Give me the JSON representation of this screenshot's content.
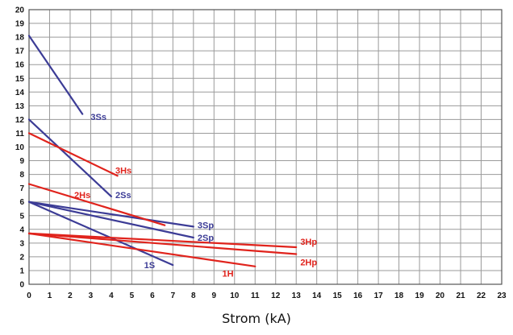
{
  "chart_data": {
    "type": "line",
    "title": "",
    "xlabel": "Strom (kA)",
    "ylabel": "",
    "xlim": [
      0,
      23
    ],
    "ylim": [
      0,
      20
    ],
    "x_ticks": [
      0,
      1,
      2,
      3,
      4,
      5,
      6,
      7,
      8,
      9,
      10,
      11,
      12,
      13,
      14,
      15,
      16,
      17,
      18,
      19,
      20,
      21,
      22,
      23
    ],
    "y_ticks": [
      0,
      1,
      2,
      3,
      4,
      5,
      6,
      7,
      8,
      9,
      10,
      11,
      12,
      13,
      14,
      15,
      16,
      17,
      18,
      19,
      20
    ],
    "grid": true,
    "colors": {
      "blue": "#3c3c96",
      "red": "#e0231c",
      "grid": "#9a9a9a"
    },
    "series": [
      {
        "name": "3Ss",
        "color": "#3c3c96",
        "x": [
          0,
          2.6
        ],
        "y": [
          18.1,
          12.4
        ]
      },
      {
        "name": "2Ss",
        "color": "#3c3c96",
        "x": [
          0,
          4.0
        ],
        "y": [
          12.0,
          6.4
        ]
      },
      {
        "name": "3Sp",
        "color": "#3c3c96",
        "x": [
          0,
          8.0
        ],
        "y": [
          6.0,
          4.2
        ]
      },
      {
        "name": "2Sp",
        "color": "#3c3c96",
        "x": [
          0,
          8.0
        ],
        "y": [
          6.0,
          3.4
        ]
      },
      {
        "name": "1S",
        "color": "#3c3c96",
        "x": [
          0,
          7.0
        ],
        "y": [
          6.0,
          1.4
        ]
      },
      {
        "name": "3Hs",
        "color": "#e0231c",
        "x": [
          0,
          4.3
        ],
        "y": [
          11.0,
          7.9
        ]
      },
      {
        "name": "2Hs",
        "color": "#e0231c",
        "x": [
          0,
          6.6
        ],
        "y": [
          7.3,
          4.3
        ]
      },
      {
        "name": "3Hp",
        "color": "#e0231c",
        "x": [
          0,
          13.0
        ],
        "y": [
          3.7,
          2.7
        ]
      },
      {
        "name": "2Hp",
        "color": "#e0231c",
        "x": [
          0,
          13.0
        ],
        "y": [
          3.7,
          2.2
        ]
      },
      {
        "name": "1H",
        "color": "#e0231c",
        "x": [
          0,
          11.0
        ],
        "y": [
          3.7,
          1.3
        ]
      }
    ],
    "annotations": [
      {
        "text": "3Ss",
        "x": 3.0,
        "y": 12.2,
        "color": "#3c3c96"
      },
      {
        "text": "3Hs",
        "x": 4.2,
        "y": 8.3,
        "color": "#e0231c"
      },
      {
        "text": "2Hs",
        "x": 2.2,
        "y": 6.5,
        "color": "#e0231c"
      },
      {
        "text": "2Ss",
        "x": 4.2,
        "y": 6.5,
        "color": "#3c3c96"
      },
      {
        "text": "3Sp",
        "x": 8.2,
        "y": 4.3,
        "color": "#3c3c96"
      },
      {
        "text": "2Sp",
        "x": 8.2,
        "y": 3.4,
        "color": "#3c3c96"
      },
      {
        "text": "3Hp",
        "x": 13.2,
        "y": 3.1,
        "color": "#e0231c"
      },
      {
        "text": "2Hp",
        "x": 13.2,
        "y": 1.6,
        "color": "#e0231c"
      },
      {
        "text": "1S",
        "x": 5.6,
        "y": 1.4,
        "color": "#3c3c96"
      },
      {
        "text": "1H",
        "x": 9.4,
        "y": 0.8,
        "color": "#e0231c"
      }
    ]
  }
}
